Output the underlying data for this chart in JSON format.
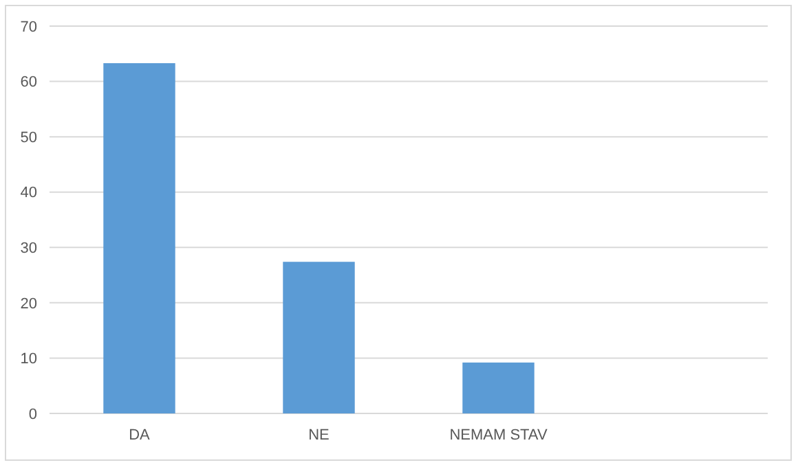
{
  "chart_data": {
    "type": "bar",
    "categories": [
      "DA",
      "NE",
      "NEMAM STAV",
      null
    ],
    "values": [
      63.3,
      27.4,
      9.2,
      null
    ],
    "color": "#5b9bd5",
    "ylim": [
      0,
      70
    ],
    "yticks": [
      0,
      10,
      20,
      30,
      40,
      50,
      60,
      70
    ],
    "grid": "y"
  }
}
